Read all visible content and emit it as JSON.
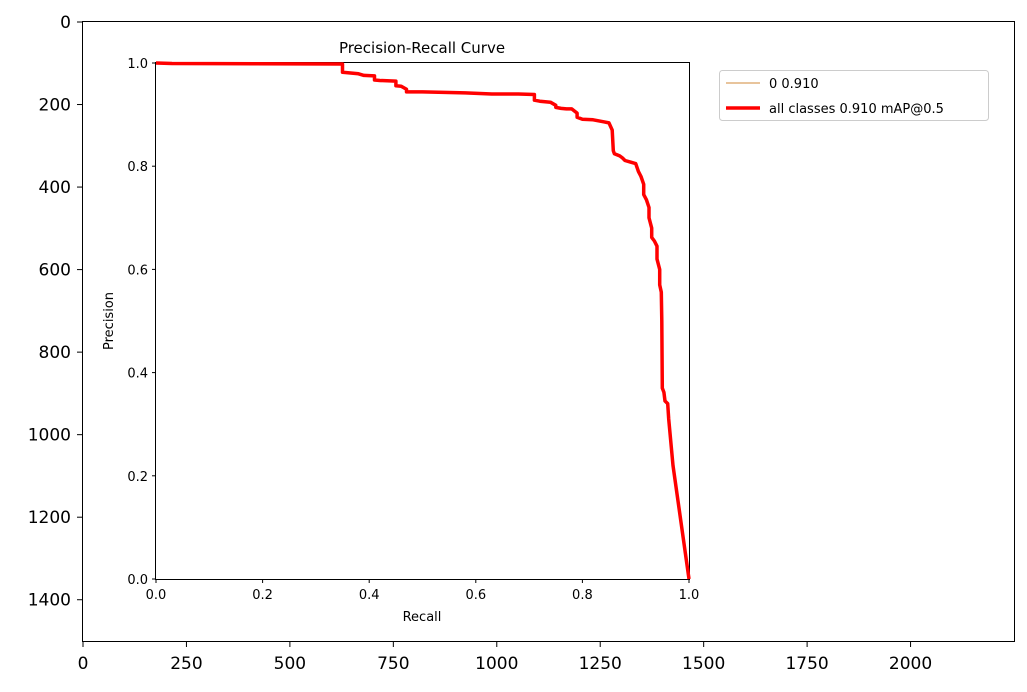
{
  "chart_data": [
    {
      "panel": "outer-image-axes",
      "type": "image",
      "x_ticks": [
        0,
        250,
        500,
        750,
        1000,
        1250,
        1500,
        1750,
        2000
      ],
      "y_ticks": [
        0,
        200,
        400,
        600,
        800,
        1000,
        1200,
        1400
      ],
      "xlim": [
        0,
        2250
      ],
      "ylim": [
        1500,
        0
      ],
      "y_inverted": true
    },
    {
      "panel": "embedded-pr-plot",
      "type": "line",
      "title": "Precision-Recall Curve",
      "xlabel": "Recall",
      "ylabel": "Precision",
      "xlim": [
        0,
        1
      ],
      "ylim": [
        0,
        1
      ],
      "x_ticks": [
        "0.0",
        "0.2",
        "0.4",
        "0.6",
        "0.8",
        "1.0"
      ],
      "y_ticks": [
        "0.0",
        "0.2",
        "0.4",
        "0.6",
        "0.8",
        "1.0"
      ],
      "grid": false,
      "legend_position": "outside-top-right",
      "series": [
        {
          "name": "0 0.910",
          "color": "#d08a3a",
          "style": "thin",
          "x": [
            0.0,
            0.03,
            0.35,
            0.35,
            0.36,
            0.38,
            0.39,
            0.41,
            0.41,
            0.42,
            0.45,
            0.45,
            0.46,
            0.47,
            0.47,
            0.5,
            0.58,
            0.63,
            0.68,
            0.71,
            0.71,
            0.72,
            0.74,
            0.75,
            0.75,
            0.76,
            0.77,
            0.78,
            0.79,
            0.79,
            0.8,
            0.82,
            0.84,
            0.85,
            0.856,
            0.858,
            0.86,
            0.87,
            0.875,
            0.88,
            0.89,
            0.9,
            0.905,
            0.91,
            0.915,
            0.915,
            0.92,
            0.925,
            0.925,
            0.93,
            0.93,
            0.935,
            0.94,
            0.94,
            0.945,
            0.945,
            0.948,
            0.949,
            0.95,
            0.953,
            0.955,
            0.96,
            0.962,
            0.97,
            1.0
          ],
          "y": [
            1.0,
            0.999,
            0.998,
            0.982,
            0.981,
            0.979,
            0.976,
            0.975,
            0.967,
            0.966,
            0.965,
            0.956,
            0.955,
            0.949,
            0.944,
            0.944,
            0.942,
            0.94,
            0.94,
            0.939,
            0.928,
            0.926,
            0.924,
            0.918,
            0.914,
            0.912,
            0.911,
            0.911,
            0.903,
            0.895,
            0.891,
            0.89,
            0.886,
            0.884,
            0.87,
            0.83,
            0.824,
            0.82,
            0.816,
            0.811,
            0.808,
            0.805,
            0.79,
            0.78,
            0.765,
            0.745,
            0.735,
            0.72,
            0.7,
            0.68,
            0.662,
            0.655,
            0.645,
            0.62,
            0.6,
            0.57,
            0.556,
            0.5,
            0.37,
            0.362,
            0.345,
            0.34,
            0.31,
            0.22,
            0.0
          ]
        },
        {
          "name": "all classes 0.910 mAP@0.5",
          "color": "#ff0000",
          "style": "thick",
          "x": [
            0.0,
            0.03,
            0.35,
            0.35,
            0.36,
            0.38,
            0.39,
            0.41,
            0.41,
            0.42,
            0.45,
            0.45,
            0.46,
            0.47,
            0.47,
            0.5,
            0.58,
            0.63,
            0.68,
            0.71,
            0.71,
            0.72,
            0.74,
            0.75,
            0.75,
            0.76,
            0.77,
            0.78,
            0.79,
            0.79,
            0.8,
            0.82,
            0.84,
            0.85,
            0.856,
            0.858,
            0.86,
            0.87,
            0.875,
            0.88,
            0.89,
            0.9,
            0.905,
            0.91,
            0.915,
            0.915,
            0.92,
            0.925,
            0.925,
            0.93,
            0.93,
            0.935,
            0.94,
            0.94,
            0.945,
            0.945,
            0.948,
            0.949,
            0.95,
            0.953,
            0.955,
            0.96,
            0.962,
            0.97,
            1.0
          ],
          "y": [
            1.0,
            0.999,
            0.998,
            0.982,
            0.981,
            0.979,
            0.976,
            0.975,
            0.967,
            0.966,
            0.965,
            0.956,
            0.955,
            0.949,
            0.944,
            0.944,
            0.942,
            0.94,
            0.94,
            0.939,
            0.928,
            0.926,
            0.924,
            0.918,
            0.914,
            0.912,
            0.911,
            0.911,
            0.903,
            0.895,
            0.891,
            0.89,
            0.886,
            0.884,
            0.87,
            0.83,
            0.824,
            0.82,
            0.816,
            0.811,
            0.808,
            0.805,
            0.79,
            0.78,
            0.765,
            0.745,
            0.735,
            0.72,
            0.7,
            0.68,
            0.662,
            0.655,
            0.645,
            0.62,
            0.6,
            0.57,
            0.556,
            0.5,
            0.37,
            0.362,
            0.345,
            0.34,
            0.31,
            0.22,
            0.0
          ]
        }
      ]
    }
  ]
}
